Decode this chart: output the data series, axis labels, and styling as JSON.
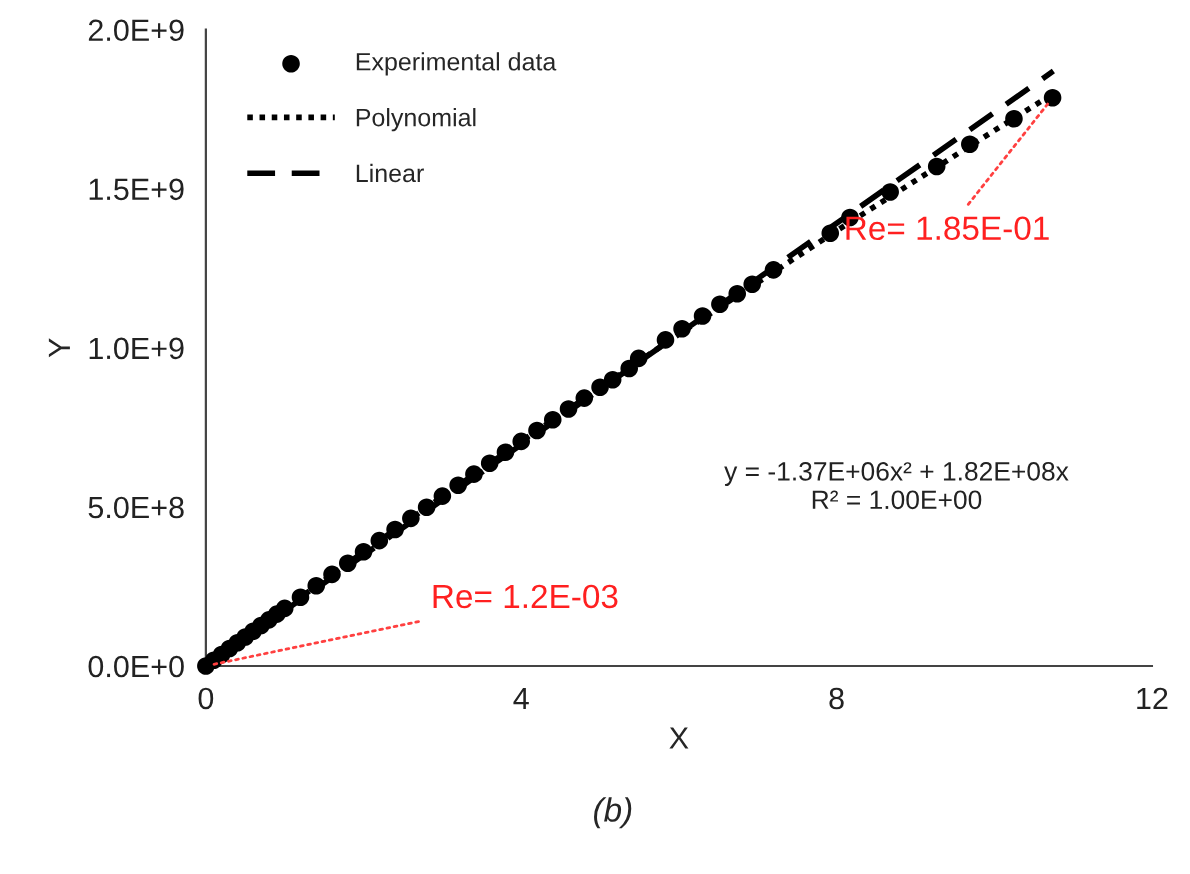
{
  "chart_data": {
    "type": "scatter",
    "xlabel": "X",
    "ylabel": "Y",
    "xlim": [
      0,
      12
    ],
    "xticks": [
      0,
      4,
      8,
      12
    ],
    "ylim": [
      0,
      2000000000
    ],
    "yticks": [
      {
        "value": 0,
        "label": "0.0E+0"
      },
      {
        "value": 500000000,
        "label": "5.0E+8"
      },
      {
        "value": 1000000000,
        "label": "1.0E+9"
      },
      {
        "value": 1500000000,
        "label": "1.5E+9"
      },
      {
        "value": 2000000000,
        "label": "2.0E+9"
      }
    ],
    "grid": false,
    "legend": "top left",
    "series": [
      {
        "name": "Experimental data",
        "marker": "circle",
        "color": "#000000",
        "x": [
          0,
          0.1,
          0.2,
          0.3,
          0.4,
          0.5,
          0.6,
          0.7,
          0.8,
          0.9,
          1.0,
          1.2,
          1.4,
          1.6,
          1.8,
          2.0,
          2.2,
          2.4,
          2.6,
          2.8,
          3.0,
          3.2,
          3.4,
          3.6,
          3.8,
          4.0,
          4.2,
          4.4,
          4.6,
          4.8,
          5.0,
          5.16,
          5.37,
          5.49,
          5.83,
          6.04,
          6.3,
          6.52,
          6.74,
          6.93,
          7.2,
          7.92,
          8.17,
          8.68,
          9.27,
          9.69,
          10.25,
          10.74
        ],
        "values": [
          0,
          18000000,
          36000000,
          55000000,
          73000000,
          91000000,
          109000000,
          127000000,
          145000000,
          163000000,
          181000000,
          216000000,
          252000000,
          288000000,
          323000000,
          359000000,
          394000000,
          429000000,
          464000000,
          499000000,
          534000000,
          568000000,
          603000000,
          637000000,
          672000000,
          706000000,
          740000000,
          774000000,
          808000000,
          842000000,
          876000000,
          900000000,
          935000000,
          967000000,
          1025000000,
          1060000000,
          1100000000,
          1137000000,
          1170000000,
          1200000000,
          1245000000,
          1360000000,
          1410000000,
          1490000000,
          1570000000,
          1640000000,
          1720000000,
          1786000000
        ]
      },
      {
        "name": "Polynomial",
        "type": "line",
        "line_style": "dotted",
        "color": "#000000",
        "x": [
          0,
          2,
          4,
          6,
          8,
          10,
          10.75
        ],
        "values": [
          0,
          359000000,
          706000000,
          1043000000,
          1368000000,
          1683000000,
          1799000000
        ]
      },
      {
        "name": "Linear",
        "type": "line",
        "line_style": "dashed",
        "color": "#000000",
        "x": [
          0,
          10.75
        ],
        "values": [
          0,
          1870000000
        ]
      }
    ],
    "annotations": [
      {
        "text": "Re= 1.85E-01",
        "x": 10.74,
        "y": 1786000000
      },
      {
        "text": "Re= 1.2E-03",
        "x": 0,
        "y": 0
      },
      "y = -1.37E+06x² + 1.82E+08x\nR² = 1.00E+00",
      "(b)"
    ]
  }
}
